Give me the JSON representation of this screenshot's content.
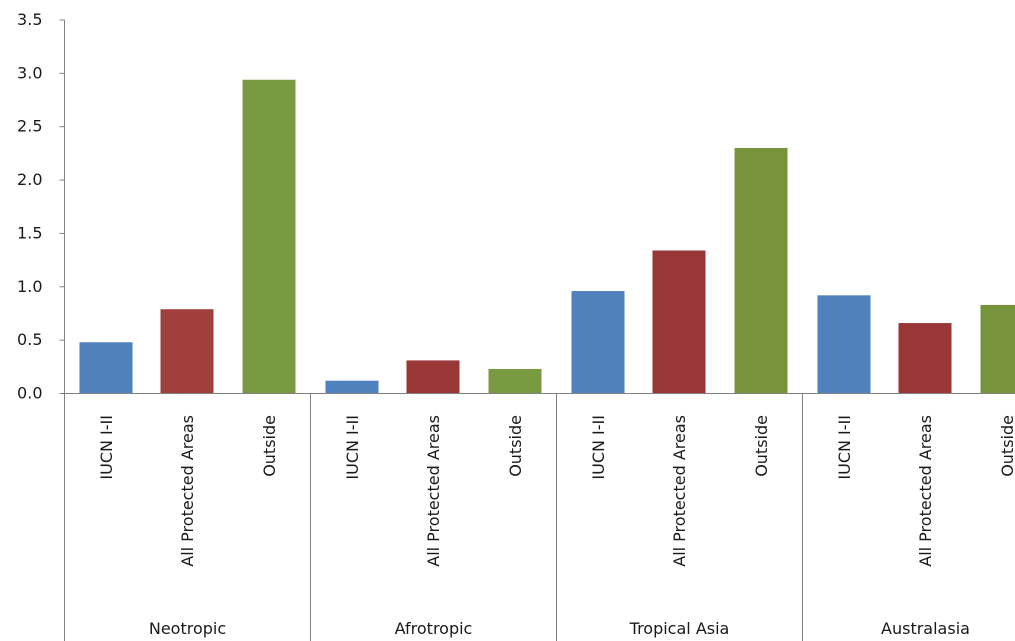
{
  "chart_data": {
    "type": "bar",
    "title": "",
    "xlabel": "",
    "ylabel": "",
    "ylim": [
      0,
      3.5
    ],
    "yticks": [
      "0.0",
      "0.5",
      "1.0",
      "1.5",
      "2.0",
      "2.5",
      "3.0",
      "3.5"
    ],
    "grid": false,
    "legend": "none",
    "groups": [
      {
        "name": "Neotropic",
        "bars": [
          {
            "label": "IUCN I-II",
            "value": 0.48,
            "color": "#4f81bd"
          },
          {
            "label": "All Protected Areas",
            "value": 0.79,
            "color": "#a0403c"
          },
          {
            "label": "Outside",
            "value": 2.94,
            "color": "#7a9a42"
          }
        ]
      },
      {
        "name": "Afrotropic",
        "bars": [
          {
            "label": "IUCN I-II",
            "value": 0.12,
            "color": "#4f81bd"
          },
          {
            "label": "All Protected Areas",
            "value": 0.31,
            "color": "#993636"
          },
          {
            "label": "Outside",
            "value": 0.23,
            "color": "#7a9a42"
          }
        ]
      },
      {
        "name": "Tropical Asia",
        "bars": [
          {
            "label": "IUCN I-II",
            "value": 0.96,
            "color": "#4f81bd"
          },
          {
            "label": "All Protected Areas",
            "value": 1.34,
            "color": "#993636"
          },
          {
            "label": "Outside",
            "value": 2.3,
            "color": "#77933c"
          }
        ]
      },
      {
        "name": "Australasia",
        "bars": [
          {
            "label": "IUCN I-II",
            "value": 0.92,
            "color": "#4f81bd"
          },
          {
            "label": "All Protected Areas",
            "value": 0.66,
            "color": "#993636"
          },
          {
            "label": "Outside",
            "value": 0.83,
            "color": "#77933c"
          }
        ]
      }
    ]
  }
}
